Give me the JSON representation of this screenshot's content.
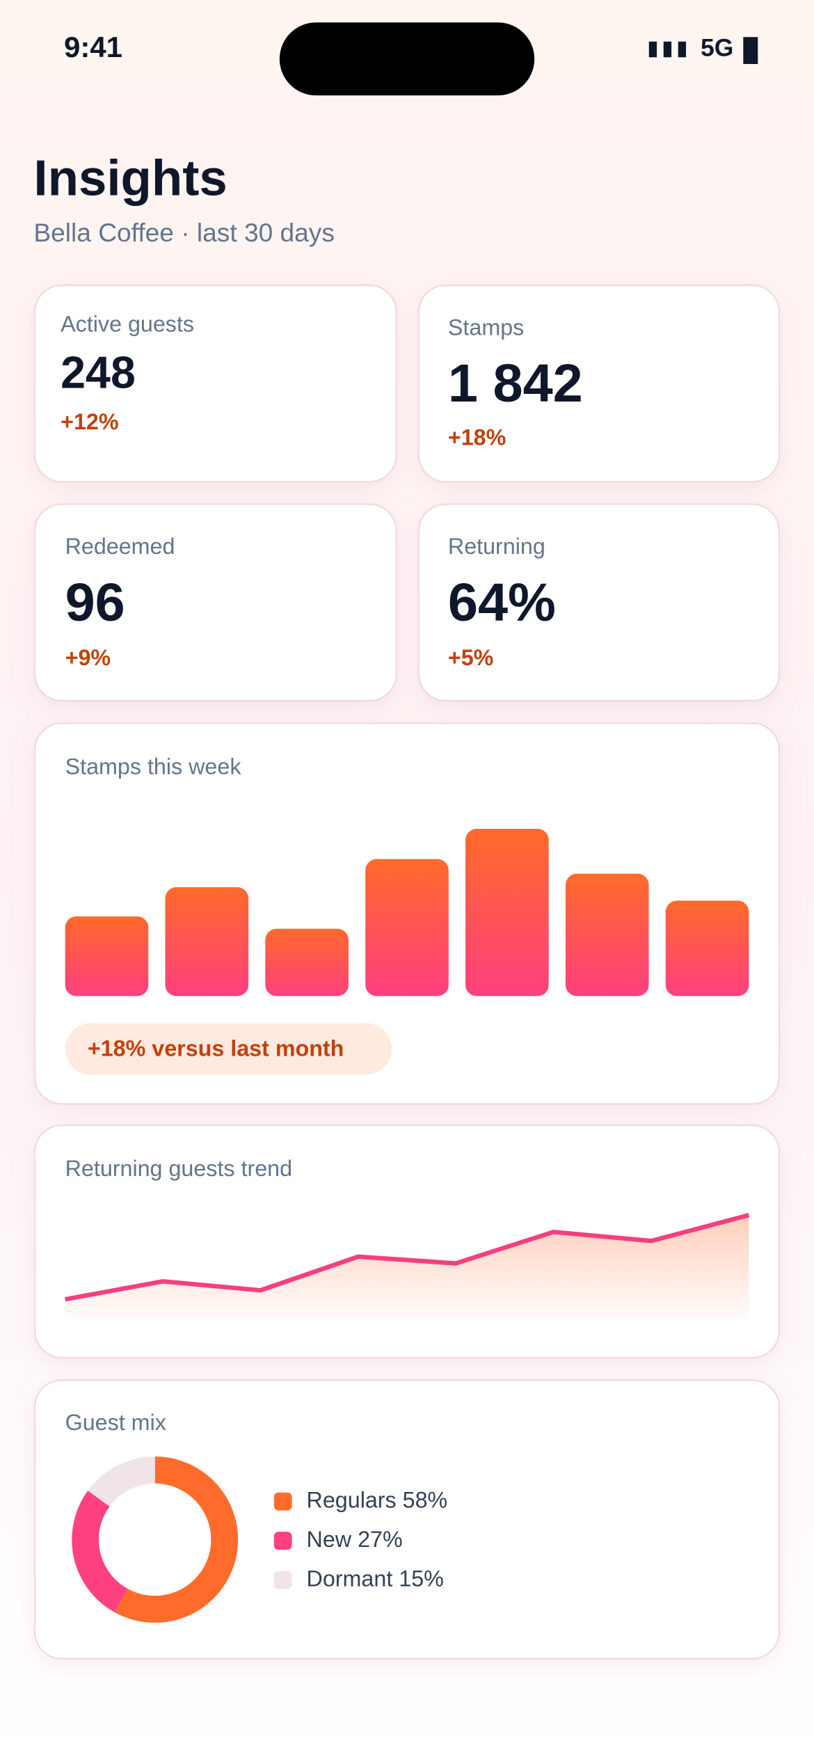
{
  "status_bar": {
    "time": "9:41",
    "network": "5G"
  },
  "header": {
    "title": "Insights",
    "subtitle": "Bella Coffee · last 30 days"
  },
  "stats": [
    {
      "label": "Active guests",
      "value": "248",
      "change": "+12%"
    },
    {
      "label": "Stamps",
      "value": "1 842",
      "change": "+18%"
    },
    {
      "label": "Redeemed",
      "value": "96",
      "change": "+9%"
    },
    {
      "label": "Returning",
      "value": "64%",
      "change": "+5%"
    }
  ],
  "chart_data": [
    {
      "type": "bar",
      "title": "Stamps this week",
      "values": [
        71,
        97,
        60,
        122,
        149,
        109,
        85
      ],
      "gradient": [
        "#ff6a2a",
        "#ff3f80"
      ],
      "annotation": "+18% versus last month"
    },
    {
      "type": "line",
      "title": "Returning guests trend",
      "values": [
        23,
        39,
        31,
        61,
        55,
        83,
        75,
        98
      ],
      "color": "#f43f7f",
      "area_color": "#ffc9b3"
    },
    {
      "type": "pie",
      "title": "Guest mix",
      "categories": [
        "Regulars",
        "New",
        "Dormant"
      ],
      "values": [
        58,
        27,
        15
      ],
      "value_labels": [
        "58%",
        "27%",
        "15%"
      ],
      "colors": [
        "#ff6b2b",
        "#ff4081",
        "#f1e4e8"
      ]
    }
  ]
}
